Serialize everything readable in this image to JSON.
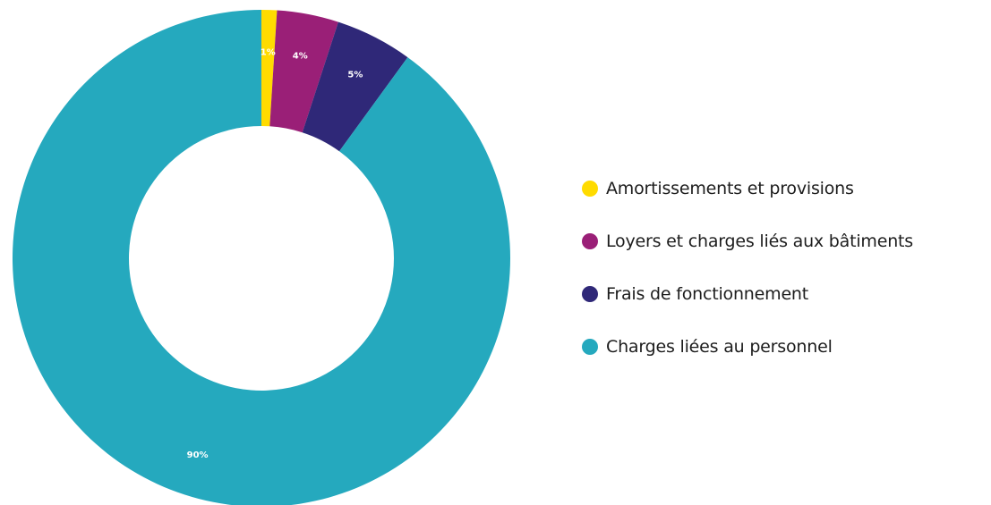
{
  "chart_data": {
    "type": "pie",
    "variant": "donut",
    "title": "",
    "legend_position": "right",
    "slices": [
      {
        "name": "Amortissements et provisions",
        "value": 1,
        "label": "1%",
        "color": "#FFDB00",
        "label_color": "#1c1c1c"
      },
      {
        "name": "Loyers et charges liés aux bâtiments",
        "value": 4,
        "label": "4%",
        "color": "#9A1F77",
        "label_color": "#ffffff"
      },
      {
        "name": "Frais de fonctionnement",
        "value": 5,
        "label": "5%",
        "color": "#2F2878",
        "label_color": "#ffffff"
      },
      {
        "name": "Charges liées au personnel",
        "value": 90,
        "label": "90%",
        "color": "#25A9BE",
        "label_color": "#ffffff"
      }
    ]
  }
}
